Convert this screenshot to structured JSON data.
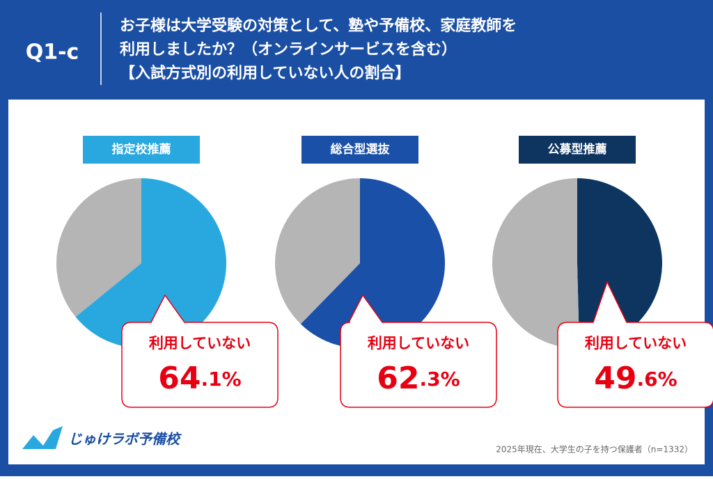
{
  "header": {
    "badge": "Q1-c",
    "title_lines": [
      "お子様は大学受験の対策として、塾や予備校、家庭教師を",
      "利用しましたか？（オンラインサービスを含む）",
      "【入試方式別の利用していない人の割合】"
    ]
  },
  "chart_data": [
    {
      "type": "pie",
      "title": "指定校推薦",
      "categories": [
        "利用していない",
        null
      ],
      "values": [
        64.1,
        35.9
      ],
      "value_labels": [
        "64.1%",
        null
      ],
      "colors": [
        "#29a8e0",
        "#b5b5b5"
      ]
    },
    {
      "type": "pie",
      "title": "総合型選抜",
      "categories": [
        "利用していない",
        null
      ],
      "values": [
        62.3,
        37.7
      ],
      "value_labels": [
        "62.3%",
        null
      ],
      "colors": [
        "#1a50a8",
        "#b5b5b5"
      ]
    },
    {
      "type": "pie",
      "title": "公募型推薦",
      "categories": [
        "利用していない",
        null
      ],
      "values": [
        49.6,
        50.4
      ],
      "value_labels": [
        "49.6%",
        null
      ],
      "colors": [
        "#0d3560",
        "#b5b5b5"
      ]
    }
  ],
  "footer": {
    "logo": "じゅけラボ予備校",
    "note": "2025年現在、大学生の子を持つ保護者（n=1332）"
  }
}
